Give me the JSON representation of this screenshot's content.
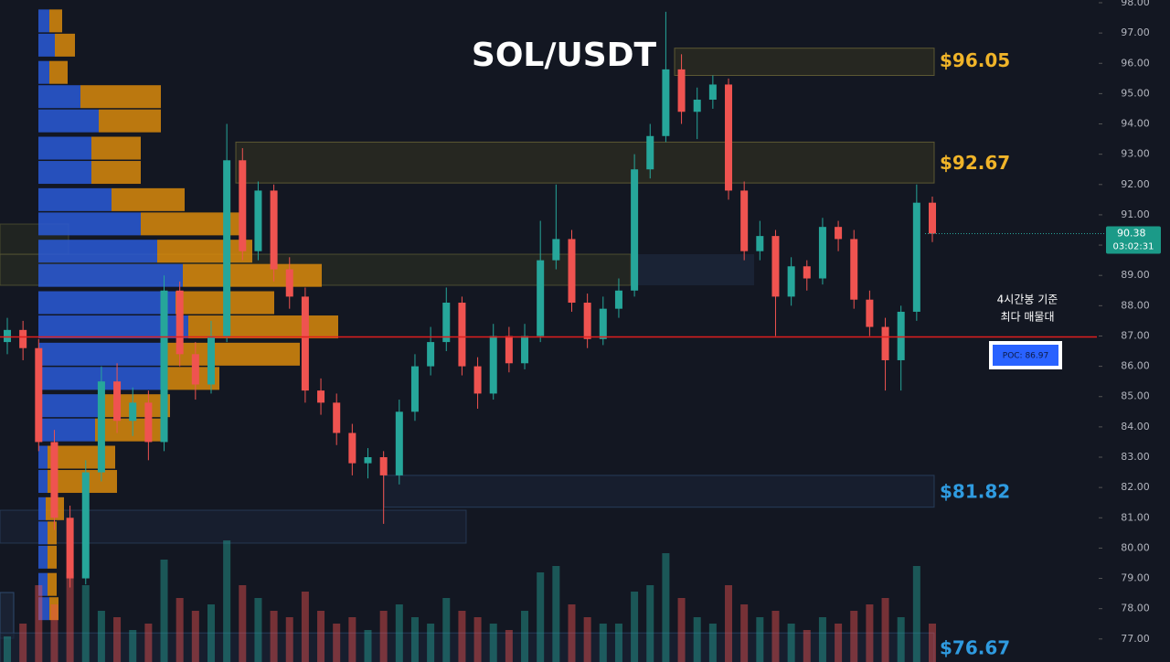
{
  "chart_data": {
    "type": "candlestick",
    "title": "SOL/USDT",
    "ylim": [
      76.24,
      98.09
    ],
    "yticks": [
      {
        "value": 98,
        "label": "98.00"
      },
      {
        "value": 97,
        "label": "97.00"
      },
      {
        "value": 96,
        "label": "96.00"
      },
      {
        "value": 95,
        "label": "95.00"
      },
      {
        "value": 94,
        "label": "94.00"
      },
      {
        "value": 93,
        "label": "93.00"
      },
      {
        "value": 92,
        "label": "92.00"
      },
      {
        "value": 91,
        "label": "91.00"
      },
      {
        "value": 90,
        "label": "90.00"
      },
      {
        "value": 89,
        "label": "89.00"
      },
      {
        "value": 88,
        "label": "88.00"
      },
      {
        "value": 87,
        "label": "87.00"
      },
      {
        "value": 86,
        "label": "86.00"
      },
      {
        "value": 85,
        "label": "85.00"
      },
      {
        "value": 84,
        "label": "84.00"
      },
      {
        "value": 83,
        "label": "83.00"
      },
      {
        "value": 82,
        "label": "82.00"
      },
      {
        "value": 81,
        "label": "81.00"
      },
      {
        "value": 80,
        "label": "80.00"
      },
      {
        "value": 79,
        "label": "79.00"
      },
      {
        "value": 78,
        "label": "78.00"
      },
      {
        "value": 77,
        "label": "77.00"
      }
    ],
    "up_color": "#26a69a",
    "down_color": "#ef5350",
    "open": [
      86.8,
      87.2,
      86.6,
      83.5,
      81.0,
      79.0,
      82.5,
      85.5,
      84.2,
      84.8,
      83.5,
      88.5,
      86.4,
      85.4,
      87.0,
      92.8,
      89.8,
      91.8,
      89.2,
      88.3,
      85.2,
      84.8,
      83.8,
      82.8,
      83.0,
      82.4,
      84.5,
      86.0,
      86.8,
      88.1,
      86.0,
      85.1,
      87.0,
      86.1,
      87.0,
      89.5,
      90.2,
      88.1,
      86.9,
      87.9,
      88.5,
      92.5,
      93.6,
      95.8,
      94.4,
      94.8,
      95.3,
      91.8,
      89.8,
      90.3,
      88.3,
      89.3,
      88.9,
      90.6,
      90.2,
      88.2,
      87.3,
      86.2,
      87.8,
      91.4
    ],
    "high": [
      87.6,
      87.5,
      86.9,
      83.9,
      81.4,
      82.9,
      86.0,
      86.1,
      85.3,
      85.2,
      89.0,
      88.8,
      86.8,
      87.5,
      94.0,
      93.2,
      92.1,
      92.0,
      89.6,
      88.6,
      85.6,
      85.1,
      84.1,
      83.3,
      83.2,
      84.9,
      86.4,
      87.3,
      88.6,
      88.3,
      86.3,
      87.4,
      87.3,
      87.4,
      90.8,
      92.0,
      90.5,
      88.4,
      88.3,
      88.9,
      93.0,
      94.0,
      97.7,
      96.3,
      95.2,
      95.6,
      95.5,
      92.1,
      90.8,
      90.5,
      89.6,
      89.5,
      90.9,
      90.8,
      90.5,
      88.5,
      87.6,
      88.0,
      92.0,
      91.6
    ],
    "low": [
      86.4,
      86.2,
      83.2,
      80.6,
      78.7,
      78.8,
      82.2,
      83.8,
      83.7,
      82.9,
      83.2,
      86.0,
      84.9,
      85.1,
      86.8,
      89.5,
      89.5,
      88.8,
      87.9,
      84.8,
      84.4,
      83.4,
      82.4,
      82.3,
      80.8,
      82.1,
      84.2,
      85.7,
      86.5,
      85.7,
      84.6,
      84.9,
      85.8,
      85.9,
      86.8,
      89.2,
      87.8,
      86.6,
      86.7,
      87.6,
      88.3,
      92.2,
      93.4,
      94.0,
      93.5,
      94.5,
      91.5,
      89.5,
      89.5,
      87.0,
      88.0,
      88.5,
      88.7,
      89.8,
      87.9,
      87.0,
      85.2,
      85.2,
      87.5,
      90.1
    ],
    "close": [
      87.2,
      86.6,
      83.5,
      81.0,
      79.0,
      82.5,
      85.5,
      84.2,
      84.8,
      83.5,
      88.5,
      86.4,
      85.4,
      87.0,
      92.8,
      89.8,
      91.8,
      89.2,
      88.3,
      85.2,
      84.8,
      83.8,
      82.8,
      83.0,
      82.4,
      84.5,
      86.0,
      86.8,
      88.1,
      86.0,
      85.1,
      87.0,
      86.1,
      87.0,
      89.5,
      90.2,
      88.1,
      86.9,
      87.9,
      88.5,
      92.5,
      93.6,
      95.8,
      94.4,
      94.8,
      95.3,
      91.8,
      89.8,
      90.3,
      88.3,
      89.3,
      88.9,
      90.6,
      90.2,
      88.2,
      87.3,
      86.2,
      87.8,
      91.4,
      90.38
    ],
    "volume": [
      20,
      30,
      60,
      45,
      70,
      60,
      40,
      35,
      25,
      30,
      80,
      50,
      40,
      45,
      95,
      60,
      50,
      40,
      35,
      55,
      40,
      30,
      35,
      25,
      40,
      45,
      35,
      30,
      50,
      40,
      35,
      30,
      25,
      40,
      70,
      75,
      45,
      35,
      30,
      30,
      55,
      60,
      85,
      50,
      35,
      30,
      60,
      45,
      35,
      40,
      30,
      25,
      35,
      30,
      40,
      45,
      50,
      35,
      75,
      30
    ],
    "profile": {
      "prices": [
        97.4,
        96.6,
        95.7,
        94.9,
        94.1,
        93.2,
        92.4,
        91.5,
        90.7,
        89.8,
        89.0,
        88.1,
        87.3,
        86.4,
        85.6,
        84.7,
        83.9,
        83.0,
        82.2,
        81.3,
        80.5,
        79.7,
        78.8,
        78.0
      ],
      "buy": [
        6,
        9,
        6,
        23,
        33,
        29,
        29,
        40,
        56,
        65,
        79,
        75,
        82,
        68,
        69,
        36,
        31,
        5,
        5,
        4,
        5,
        5,
        5,
        6
      ],
      "sell": [
        7,
        11,
        10,
        44,
        34,
        27,
        27,
        40,
        54,
        52,
        76,
        54,
        82,
        75,
        30,
        36,
        38,
        37,
        38,
        10,
        5,
        5,
        5,
        5
      ],
      "buy_color": "#2a5bd7",
      "sell_color": "#d98a0c"
    },
    "levels": [
      {
        "value": 96.05,
        "label": "$96.05",
        "top": 96.5,
        "bottom": 95.6,
        "color": "#f0b429"
      },
      {
        "value": 92.67,
        "label": "$92.67",
        "top": 93.4,
        "bottom": 92.05,
        "color": "#f0b429"
      },
      {
        "value": 81.82,
        "label": "$81.82",
        "top": 82.4,
        "bottom": 81.35,
        "color": "#2f9be0"
      },
      {
        "value": 76.67,
        "label": "$76.67",
        "top": 77.2,
        "bottom": 76.2,
        "color": "#2f9be0"
      }
    ],
    "poc": {
      "value": 86.97,
      "label": "POC: 86.97"
    },
    "annotation": [
      "4시간봉 기준",
      "최다 매물대"
    ],
    "last_price": {
      "value": 90.38,
      "label": "90.38"
    },
    "countdown": "03:02:31"
  }
}
